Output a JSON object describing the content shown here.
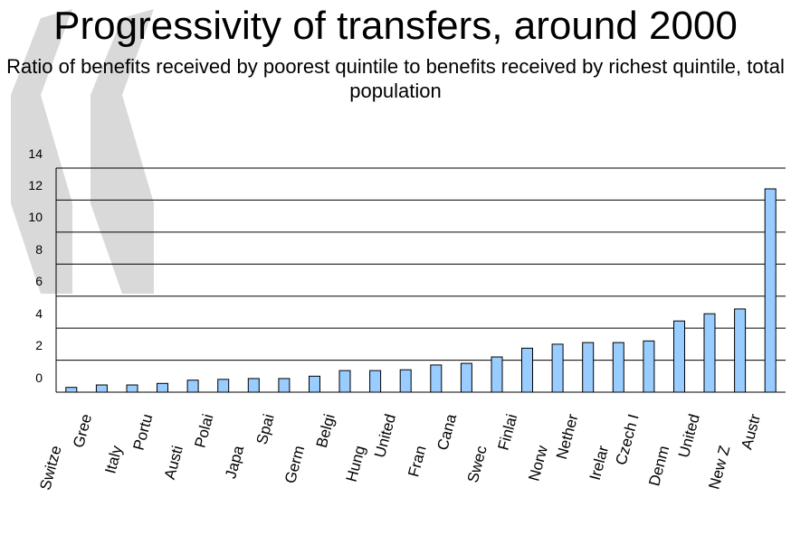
{
  "header": {
    "title": "Progressivity of transfers, around 2000",
    "subtitle": "Ratio of benefits received by poorest quintile to benefits received by richest quintile, total population"
  },
  "colors": {
    "bar_fill": "#99ccff",
    "bar_stroke": "#000000",
    "grid": "#000000",
    "watermark": "#d9d9d9"
  },
  "chart_data": {
    "type": "bar",
    "title": "Progressivity of transfers, around 2000",
    "subtitle": "Ratio of benefits received by poorest quintile to benefits received by richest quintile, total population",
    "xlabel": "",
    "ylabel": "",
    "ylim": [
      0,
      14
    ],
    "yticks": [
      "14",
      "12",
      "10",
      "8",
      "6",
      "4",
      "2",
      "0"
    ],
    "grid": true,
    "legend": "none",
    "categories": [
      "Switze",
      "Gree",
      "Italy",
      "Portu",
      "Austi",
      "Polai",
      "Japa",
      "Spai",
      "Germ",
      "Belgi",
      "Hung",
      "United",
      "Fran",
      "Cana",
      "Swec",
      "Finlai",
      "Norw",
      "Nether",
      "Irelar",
      "Czech I",
      "Denm",
      "United",
      "New Z",
      "Austr"
    ],
    "values": [
      0.3,
      0.45,
      0.45,
      0.55,
      0.75,
      0.8,
      0.85,
      0.85,
      1.0,
      1.35,
      1.35,
      1.4,
      1.7,
      1.8,
      2.2,
      2.75,
      3.0,
      3.1,
      3.1,
      3.2,
      4.45,
      4.9,
      5.2,
      12.7
    ]
  }
}
